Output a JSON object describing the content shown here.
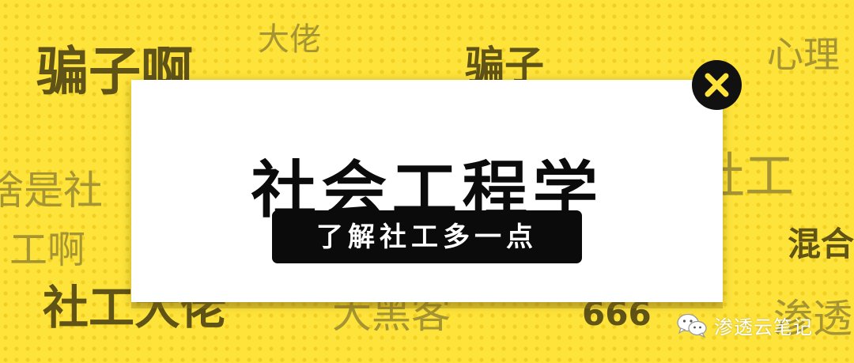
{
  "background": {
    "color": "#fde33a",
    "dot_color": "#f2cf22",
    "words": {
      "w1": "骗子啊",
      "w2": "大佬",
      "w3": "骗子",
      "w4": "心理",
      "w5": "啥是社",
      "w6": "工啊",
      "w7": "社工",
      "w8": "混合",
      "w9": "社工大佬",
      "w10": "大黑客",
      "w11": "666",
      "w12": "渗透"
    }
  },
  "card": {
    "title": "社会工程学",
    "subtitle": "了解社工多一点",
    "close_icon": "close-x-icon",
    "accent_color": "#fde33a"
  },
  "watermark": {
    "icon": "wechat-icon",
    "text": "渗透云笔记"
  }
}
